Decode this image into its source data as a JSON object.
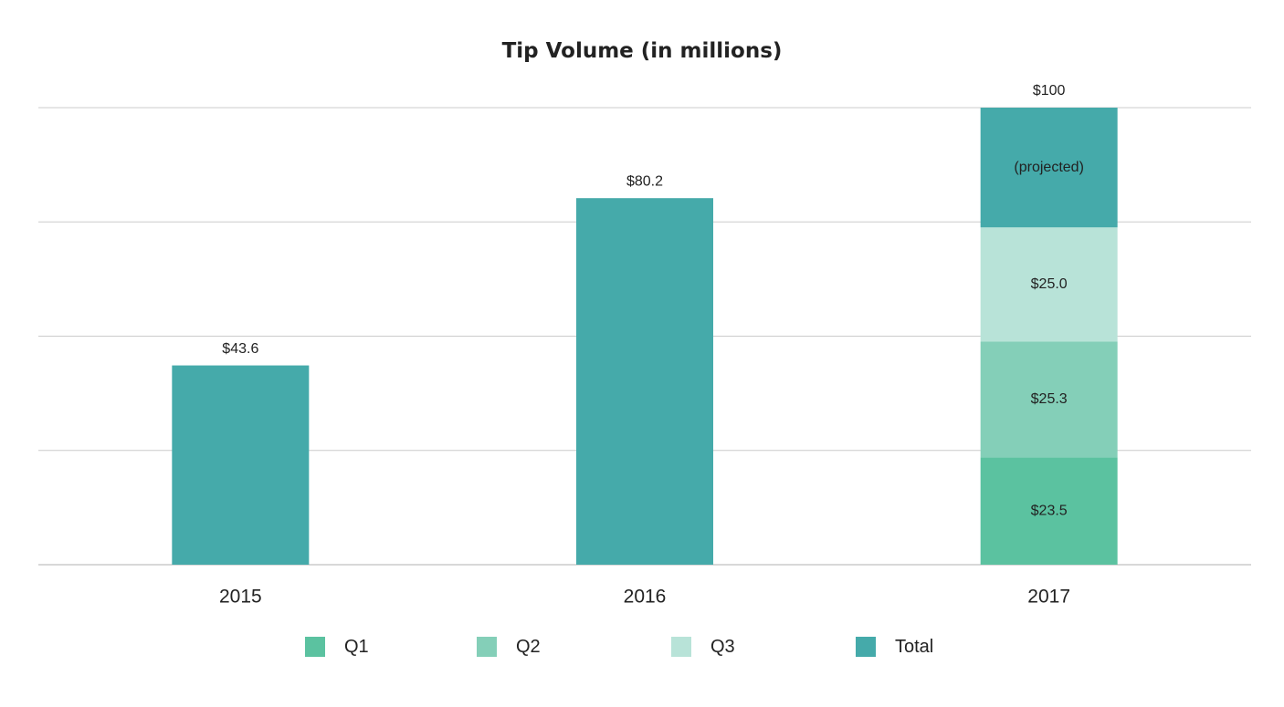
{
  "chart_data": {
    "type": "bar",
    "title": "Tip Volume (in millions)",
    "categories": [
      "2015",
      "2016",
      "2017"
    ],
    "ylim": [
      0,
      100
    ],
    "grid": true,
    "legend_position": "bottom",
    "colors": {
      "Q1": "#5bc2a0",
      "Q2": "#84cfb8",
      "Q3": "#b8e3d8",
      "Total": "#45aaaa",
      "grid": "#cccccc",
      "text": "#222222"
    },
    "series": [
      {
        "name": "Q1",
        "values": [
          null,
          null,
          23.5
        ]
      },
      {
        "name": "Q2",
        "values": [
          null,
          null,
          25.3
        ]
      },
      {
        "name": "Q3",
        "values": [
          null,
          null,
          25.0
        ]
      },
      {
        "name": "Total",
        "values": [
          43.6,
          80.2,
          26.2
        ]
      }
    ],
    "bar_totals": [
      43.6,
      80.2,
      100
    ],
    "total_labels": [
      "$43.6",
      "$80.2",
      "$100"
    ],
    "segment_labels": {
      "Q1": "$23.5",
      "Q2": "$25.3",
      "Q3": "$25.0",
      "Total": "(projected)"
    }
  },
  "legend": [
    {
      "label": "Q1",
      "color": "#5bc2a0"
    },
    {
      "label": "Q2",
      "color": "#84cfb8"
    },
    {
      "label": "Q3",
      "color": "#b8e3d8"
    },
    {
      "label": "Total",
      "color": "#45aaaa"
    }
  ]
}
